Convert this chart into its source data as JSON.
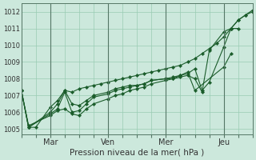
{
  "bg_color": "#cce8dc",
  "grid_color": "#99ccb3",
  "line_color": "#1a5c2a",
  "xlabel": "Pression niveau de la mer( hPa )",
  "ylabel_ticks": [
    1005,
    1006,
    1007,
    1008,
    1009,
    1010,
    1011,
    1012
  ],
  "ymin": 1004.7,
  "ymax": 1012.5,
  "x_tick_labels": [
    "Mar",
    "Ven",
    "Mer",
    "Jeu"
  ],
  "x_tick_positions": [
    24,
    72,
    120,
    168
  ],
  "xmin": 0,
  "xmax": 192,
  "lines": [
    {
      "x": [
        0,
        6,
        12,
        24,
        30,
        36,
        42,
        48,
        54,
        60,
        66,
        72,
        78,
        84,
        90,
        96,
        102,
        108,
        114,
        120,
        126,
        132,
        138,
        144,
        150,
        156,
        162,
        168,
        174,
        180,
        186,
        192
      ],
      "y": [
        1007.3,
        1005.1,
        1005.1,
        1006.3,
        1006.7,
        1007.3,
        1007.2,
        1007.4,
        1007.5,
        1007.6,
        1007.7,
        1007.8,
        1007.9,
        1008.0,
        1008.1,
        1008.2,
        1008.3,
        1008.4,
        1008.5,
        1008.6,
        1008.7,
        1008.8,
        1009.0,
        1009.2,
        1009.5,
        1009.8,
        1010.1,
        1010.5,
        1011.0,
        1011.5,
        1011.8,
        1012.0
      ]
    },
    {
      "x": [
        0,
        6,
        24,
        30,
        36,
        42,
        48,
        54,
        60,
        72,
        78,
        84,
        90,
        96,
        102,
        108,
        120,
        126,
        132,
        138,
        144,
        150,
        156,
        168,
        174,
        180,
        186,
        192
      ],
      "y": [
        1007.3,
        1005.1,
        1006.0,
        1006.5,
        1007.3,
        1006.5,
        1006.4,
        1006.7,
        1007.0,
        1007.2,
        1007.4,
        1007.5,
        1007.6,
        1007.6,
        1007.7,
        1007.9,
        1008.0,
        1008.1,
        1008.2,
        1008.3,
        1008.6,
        1007.3,
        1007.8,
        1009.9,
        1011.0,
        1011.5,
        1011.8,
        1012.1
      ]
    },
    {
      "x": [
        0,
        6,
        24,
        30,
        36,
        42,
        48,
        54,
        60,
        72,
        78,
        84,
        90,
        96,
        102,
        108,
        120,
        126,
        132,
        138,
        144,
        150,
        156,
        168,
        174,
        180
      ],
      "y": [
        1007.3,
        1005.1,
        1005.9,
        1006.2,
        1007.2,
        1006.0,
        1006.1,
        1006.5,
        1006.9,
        1007.1,
        1007.3,
        1007.4,
        1007.5,
        1007.6,
        1007.7,
        1007.9,
        1008.0,
        1008.0,
        1008.1,
        1008.2,
        1008.0,
        1007.2,
        1009.7,
        1010.8,
        1011.0,
        1011.0
      ]
    },
    {
      "x": [
        0,
        6,
        24,
        30,
        36,
        42,
        48,
        54,
        60,
        72,
        78,
        84,
        90,
        96,
        102,
        108,
        120,
        126,
        132,
        138,
        144,
        168,
        174
      ],
      "y": [
        1007.3,
        1005.2,
        1005.8,
        1006.1,
        1006.2,
        1005.9,
        1005.8,
        1006.2,
        1006.5,
        1006.8,
        1007.0,
        1007.1,
        1007.3,
        1007.4,
        1007.5,
        1007.7,
        1007.9,
        1008.0,
        1008.2,
        1008.4,
        1007.3,
        1008.7,
        1009.5
      ]
    }
  ]
}
